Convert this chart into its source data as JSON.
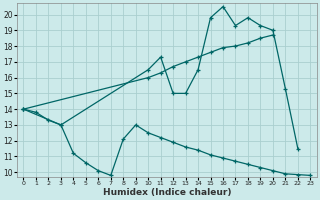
{
  "title": "",
  "xlabel": "Humidex (Indice chaleur)",
  "bg_color": "#cceaea",
  "grid_color": "#aacfcf",
  "line_color": "#006666",
  "xlim": [
    -0.5,
    23.5
  ],
  "ylim": [
    9.7,
    20.7
  ],
  "xticks": [
    0,
    1,
    2,
    3,
    4,
    5,
    6,
    7,
    8,
    9,
    10,
    11,
    12,
    13,
    14,
    15,
    16,
    17,
    18,
    19,
    20,
    21,
    22,
    23
  ],
  "yticks": [
    10,
    11,
    12,
    13,
    14,
    15,
    16,
    17,
    18,
    19,
    20
  ],
  "line1_x": [
    0,
    1,
    2,
    3,
    10,
    11,
    12,
    13,
    14,
    15,
    16,
    17,
    18,
    19,
    20,
    21,
    22
  ],
  "line1_y": [
    14,
    13.8,
    13.3,
    13.0,
    16.5,
    17.3,
    15.0,
    15.0,
    16.5,
    19.8,
    20.5,
    19.3,
    19.8,
    19.3,
    19.0,
    15.3,
    11.5
  ],
  "line2_x": [
    0,
    10,
    11,
    12,
    13,
    14,
    15,
    16,
    17,
    18,
    19,
    20
  ],
  "line2_y": [
    14,
    16.0,
    16.3,
    16.7,
    17.0,
    17.3,
    17.6,
    17.9,
    18.0,
    18.2,
    18.5,
    18.7
  ],
  "line3_x": [
    0,
    3,
    4,
    5,
    6,
    7,
    8,
    9,
    10,
    11,
    12,
    13,
    14,
    15,
    16,
    17,
    18,
    19,
    20,
    21,
    22,
    23
  ],
  "line3_y": [
    14,
    13.0,
    11.2,
    10.6,
    10.1,
    9.8,
    12.1,
    13.0,
    12.5,
    12.2,
    11.9,
    11.6,
    11.4,
    11.1,
    10.9,
    10.7,
    10.5,
    10.3,
    10.1,
    9.9,
    9.85,
    9.8
  ]
}
